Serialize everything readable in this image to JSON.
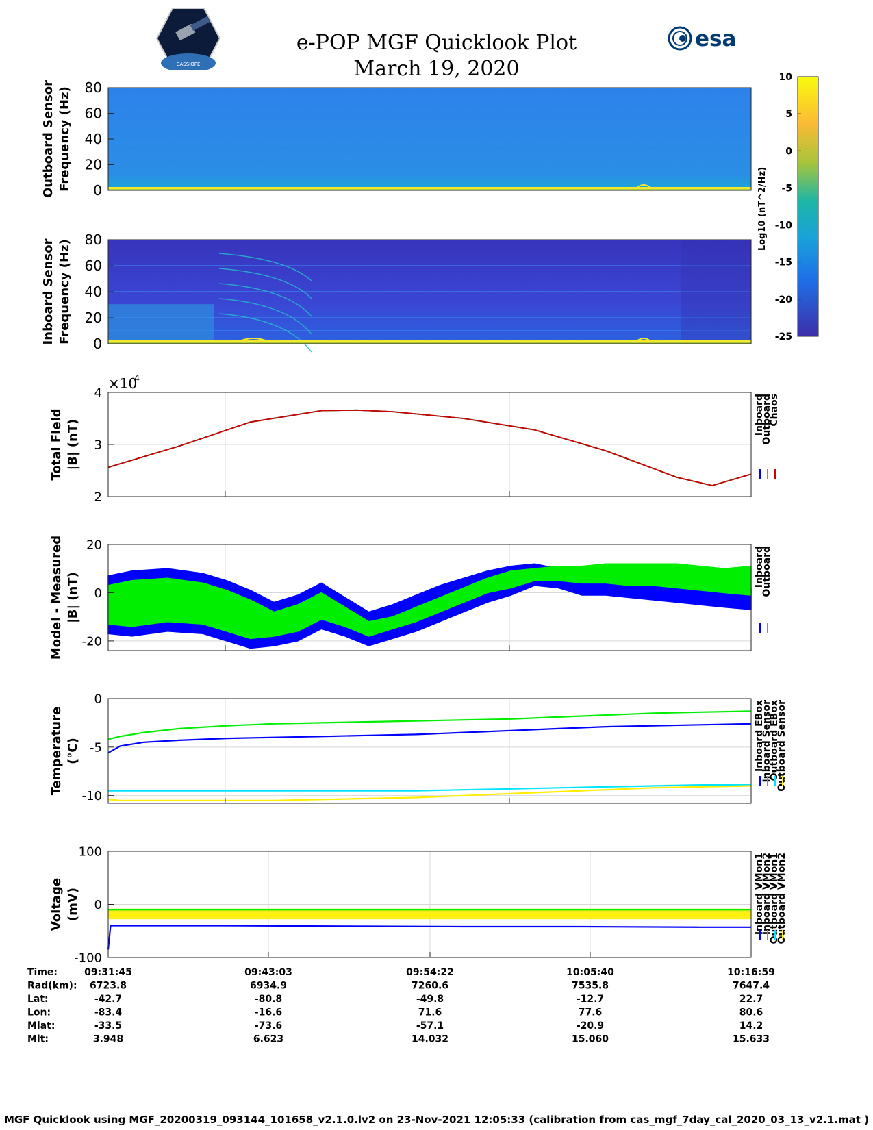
{
  "header": {
    "title_line1": "e-POP MGF Quicklook Plot",
    "title_line2": "March 19, 2020",
    "esa_logo_text": "esa",
    "cassiope_logo_text": "CASSIOPE"
  },
  "colors": {
    "inboard": "#0000ff",
    "outboard": "#00ee00",
    "chaos": "#cc0000",
    "inboard_sensor": "#00e5ff",
    "outboard_sensor": "#ffee00",
    "grid": "#d8d8d8",
    "spec_bg_outboard": "#2f7fe8",
    "spec_bg_inboard": "#3a3fd0"
  },
  "colorbar": {
    "label": "Log10 (nT^2/Hz)",
    "ticks": [
      10,
      5,
      0,
      -5,
      -10,
      -15,
      -20,
      -25
    ],
    "range": [
      -25,
      10
    ]
  },
  "chart_data": [
    {
      "type": "heatmap",
      "name": "outboard-spectrogram",
      "ylabel": "Outboard Sensor Frequency (Hz)",
      "ylabel_lines": [
        "Outboard Sensor",
        "Frequency (Hz)"
      ],
      "ylim": [
        0,
        80
      ],
      "yticks": [
        80,
        60,
        40,
        20,
        0
      ]
    },
    {
      "type": "heatmap",
      "name": "inboard-spectrogram",
      "ylabel": "Inboard Sensor Frequency (Hz)",
      "ylabel_lines": [
        "Inboard Sensor",
        "Frequency (Hz)"
      ],
      "ylim": [
        0,
        80
      ],
      "yticks": [
        80,
        60,
        40,
        20,
        0
      ]
    },
    {
      "type": "line",
      "name": "total-field",
      "ylabel": "Total Field |B| (nT)",
      "ylabel_lines": [
        "Total Field",
        "|B| (nT)"
      ],
      "ylim": [
        2,
        4
      ],
      "yticks": [
        4,
        3,
        2
      ],
      "exponent_label": "×10",
      "exponent_power": "4",
      "xlim": [
        0,
        2714
      ],
      "x": [
        0,
        300,
        600,
        900,
        1050,
        1200,
        1500,
        1800,
        2100,
        2400,
        2550,
        2714
      ],
      "series": [
        {
          "name": "Inboard",
          "color_key": "inboard",
          "values": [
            2.56,
            2.97,
            3.43,
            3.65,
            3.66,
            3.63,
            3.5,
            3.28,
            2.88,
            2.37,
            2.21,
            2.43
          ]
        },
        {
          "name": "Outboard",
          "color_key": "outboard",
          "values": [
            2.56,
            2.97,
            3.43,
            3.65,
            3.66,
            3.63,
            3.5,
            3.28,
            2.88,
            2.37,
            2.21,
            2.43
          ]
        },
        {
          "name": "Chaos",
          "color_key": "chaos",
          "values": [
            2.56,
            2.97,
            3.43,
            3.65,
            3.66,
            3.63,
            3.5,
            3.28,
            2.88,
            2.37,
            2.21,
            2.43
          ]
        }
      ]
    },
    {
      "type": "area",
      "name": "model-measured",
      "ylabel": "Model - Measured |B| (nT)",
      "ylabel_lines": [
        "Model - Measured",
        "|B| (nT)"
      ],
      "ylim": [
        -24,
        20
      ],
      "yticks": [
        20,
        0,
        -20
      ],
      "xlim": [
        0,
        2714
      ],
      "x": [
        0,
        100,
        250,
        400,
        500,
        600,
        700,
        800,
        900,
        1000,
        1100,
        1200,
        1300,
        1400,
        1500,
        1600,
        1700,
        1800,
        1900,
        2000,
        2100,
        2200,
        2300,
        2400,
        2500,
        2600,
        2714
      ],
      "series": [
        {
          "name": "Inboard",
          "color_key": "inboard",
          "upper": [
            7,
            9,
            10,
            8,
            5,
            1,
            -4,
            -1,
            4,
            -2,
            -8,
            -5,
            -1,
            3,
            6,
            9,
            11,
            12,
            10,
            8,
            8,
            7,
            6,
            5,
            4,
            3,
            2
          ],
          "lower": [
            -17,
            -18,
            -16,
            -17,
            -20,
            -23,
            -22,
            -20,
            -15,
            -18,
            -22,
            -19,
            -16,
            -12,
            -8,
            -4,
            -1,
            3,
            2,
            -1,
            -1,
            -2,
            -3,
            -4,
            -5,
            -6,
            -7
          ]
        },
        {
          "name": "Outboard",
          "color_key": "outboard",
          "upper": [
            3,
            5,
            6,
            4,
            1,
            -3,
            -8,
            -5,
            0,
            -6,
            -12,
            -10,
            -6,
            -2,
            2,
            6,
            9,
            10,
            11,
            11,
            12,
            12,
            12,
            12,
            11,
            10,
            11
          ],
          "lower": [
            -13,
            -14,
            -12,
            -13,
            -16,
            -19,
            -18,
            -16,
            -11,
            -14,
            -18,
            -15,
            -12,
            -8,
            -4,
            0,
            2,
            5,
            5,
            4,
            4,
            3,
            3,
            2,
            1,
            0,
            -1
          ]
        }
      ]
    },
    {
      "type": "line",
      "name": "temperature",
      "ylabel": "Temperature (°C)",
      "ylabel_lines": [
        "Temperature",
        "(°C)"
      ],
      "ylim": [
        -10.8,
        0
      ],
      "yticks": [
        0,
        -5,
        -10
      ],
      "xlim": [
        0,
        2714
      ],
      "x": [
        0,
        50,
        150,
        300,
        500,
        700,
        900,
        1100,
        1300,
        1500,
        1700,
        1900,
        2100,
        2300,
        2500,
        2714
      ],
      "series": [
        {
          "name": "Inboard EBox",
          "color_key": "inboard",
          "values": [
            -5.6,
            -4.9,
            -4.5,
            -4.3,
            -4.1,
            -4.0,
            -3.9,
            -3.8,
            -3.7,
            -3.5,
            -3.3,
            -3.1,
            -2.9,
            -2.8,
            -2.7,
            -2.6
          ]
        },
        {
          "name": "Inboard Sensor",
          "color_key": "outboard",
          "values": [
            -4.2,
            -3.9,
            -3.5,
            -3.1,
            -2.8,
            -2.6,
            -2.5,
            -2.4,
            -2.3,
            -2.2,
            -2.1,
            -1.9,
            -1.7,
            -1.5,
            -1.4,
            -1.3
          ]
        },
        {
          "name": "Outboard EBox",
          "color_key": "inboard_sensor",
          "values": [
            -9.5,
            -9.5,
            -9.5,
            -9.5,
            -9.5,
            -9.5,
            -9.5,
            -9.5,
            -9.5,
            -9.4,
            -9.3,
            -9.2,
            -9.1,
            -9.0,
            -8.9,
            -8.9
          ]
        },
        {
          "name": "Outboard Sensor",
          "color_key": "outboard_sensor",
          "values": [
            -10.4,
            -10.5,
            -10.5,
            -10.5,
            -10.5,
            -10.5,
            -10.4,
            -10.3,
            -10.2,
            -10.0,
            -9.8,
            -9.6,
            -9.4,
            -9.2,
            -9.1,
            -9.0
          ]
        }
      ]
    },
    {
      "type": "line",
      "name": "voltage",
      "ylabel": "Voltage (mV)",
      "ylabel_lines": [
        "Voltage",
        "(mV)"
      ],
      "ylim": [
        -100,
        100
      ],
      "yticks": [
        100,
        0,
        -100
      ],
      "xlim": [
        0,
        2714
      ],
      "x": [
        0,
        10,
        40,
        500,
        1000,
        1500,
        2000,
        2500,
        2714
      ],
      "series": [
        {
          "name": "Inboard VMon1",
          "color_key": "inboard",
          "values": [
            -85,
            -40,
            -40,
            -40,
            -41,
            -42,
            -42,
            -43,
            -43
          ]
        },
        {
          "name": "Inboard VMon2",
          "color_key": "outboard",
          "values": [
            -10,
            -10,
            -10,
            -10,
            -10,
            -10,
            -10,
            -10,
            -10
          ]
        },
        {
          "name": "Outboard VMon1",
          "color_key": "inboard_sensor",
          "values": [
            -12,
            -12,
            -12,
            -12,
            -12,
            -12,
            -12,
            -12,
            -12
          ]
        },
        {
          "name": "Outboard VMon2",
          "color_key": "outboard_sensor",
          "values": [
            -20,
            -20,
            -20,
            -20,
            -20,
            -20,
            -20,
            -20,
            -20
          ]
        }
      ]
    }
  ],
  "ephemeris": {
    "row_labels": [
      "Time:",
      "Rad(km):",
      "Lat:",
      "Lon:",
      "Mlat:",
      "Mlt:"
    ],
    "columns": [
      {
        "values": [
          "09:31:45",
          "6723.8",
          "-42.7",
          "-83.4",
          "-33.5",
          "3.948"
        ]
      },
      {
        "values": [
          "09:43:03",
          "6934.9",
          "-80.8",
          "-16.6",
          "-73.6",
          "6.623"
        ]
      },
      {
        "values": [
          "09:54:22",
          "7260.6",
          "-49.8",
          "71.6",
          "-57.1",
          "14.032"
        ]
      },
      {
        "values": [
          "10:05:40",
          "7535.8",
          "-12.7",
          "77.6",
          "-20.9",
          "15.060"
        ]
      },
      {
        "values": [
          "10:16:59",
          "7647.4",
          "22.7",
          "80.6",
          "14.2",
          "15.633"
        ]
      }
    ]
  },
  "footer": {
    "text": "MGF Quicklook using MGF_20200319_093144_101658_v2.1.0.lv2 on 23-Nov-2021 12:05:33 (calibration from cas_mgf_7day_cal_2020_03_13_v2.1.mat )"
  }
}
